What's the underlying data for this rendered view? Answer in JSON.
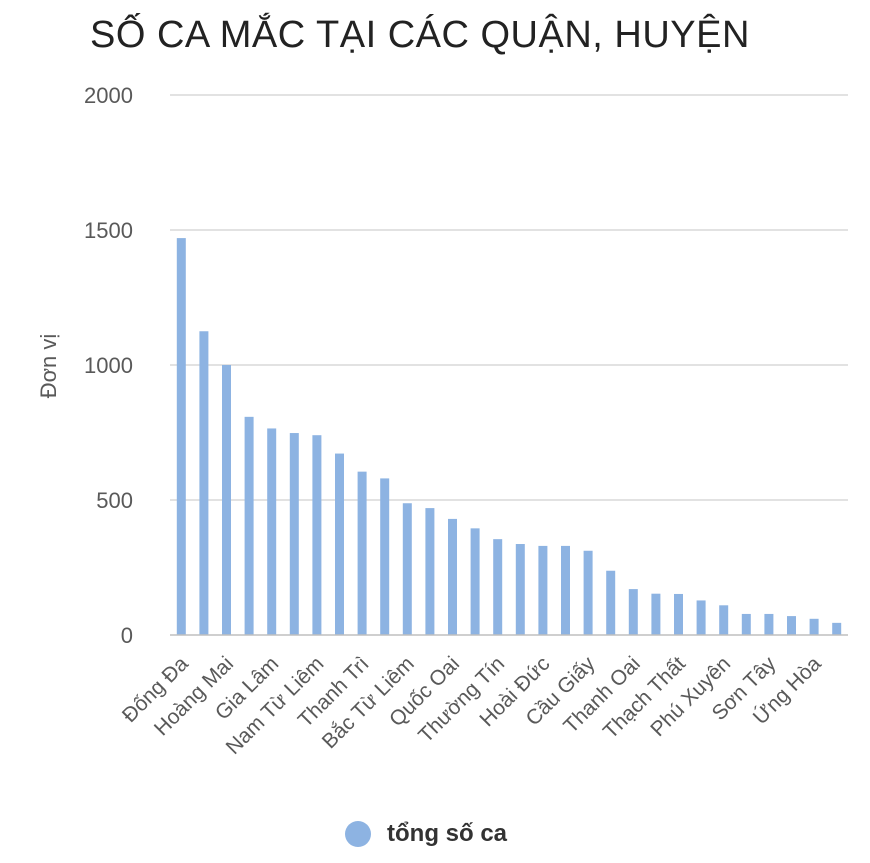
{
  "chart_data": {
    "type": "bar",
    "title": "SỐ CA MẮC TẠI CÁC QUẬN, HUYỆN",
    "ylabel": "Đơn vị",
    "xlabel": "",
    "ylim": [
      0,
      2000
    ],
    "yticks": [
      0,
      500,
      1000,
      1500,
      2000
    ],
    "grid": true,
    "legend_position": "bottom",
    "bar_color": "#8DB3E2",
    "grid_color": "#D9D9D9",
    "categories": [
      "Đống Đa",
      "",
      "Hoàng Mai",
      "",
      "Gia Lâm",
      "",
      "Nam Từ Liêm",
      "",
      "Thanh Trì",
      "",
      "Bắc Từ Liêm",
      "",
      "Quốc Oai",
      "",
      "Thường Tín",
      "",
      "Hoài Đức",
      "",
      "Cầu Giấy",
      "",
      "Thanh Oai",
      "",
      "Thạch Thất",
      "",
      "Phú Xuyên",
      "",
      "Sơn Tây",
      "",
      "Ứng Hòa",
      ""
    ],
    "series": [
      {
        "name": "tổng số ca",
        "values": [
          1470,
          1125,
          1000,
          808,
          765,
          748,
          740,
          672,
          605,
          580,
          488,
          470,
          430,
          395,
          355,
          337,
          330,
          330,
          312,
          238,
          170,
          153,
          152,
          128,
          110,
          78,
          78,
          70,
          60,
          45
        ]
      }
    ]
  }
}
